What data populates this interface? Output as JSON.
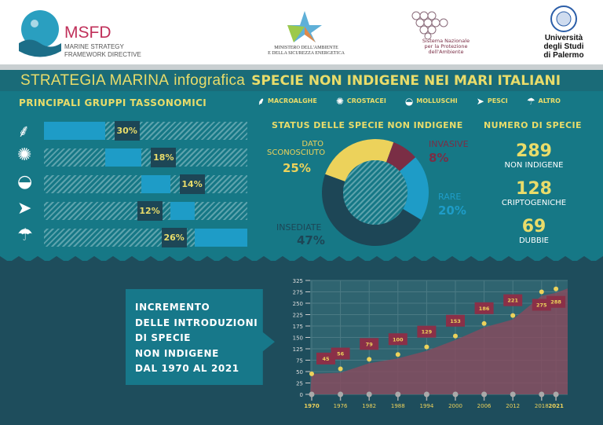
{
  "header": {
    "msfd_title": "MSFD",
    "msfd_sub1": "MARINE STRATEGY",
    "msfd_sub2": "FRAMEWORK DIRECTIVE",
    "ministero1": "MINISTERO DELL'AMBIENTE",
    "ministero2": "E DELLA SICUREZZA ENERGETICA",
    "snpa1": "Sistema Nazionale",
    "snpa2": "per la Protezione",
    "snpa3": "dell'Ambiente",
    "unipa1": "Università",
    "unipa2": "degli Studi",
    "unipa3": "di Palermo"
  },
  "title": {
    "part1": "STRATEGIA MARINA",
    "part2": "infografica",
    "part3": "SPECIE NON INDIGENE NEI MARI ITALIANI"
  },
  "colors": {
    "background": "#167886",
    "accent_yellow": "#e9dc6a",
    "bar_blue": "#1e9cc7",
    "invasive": "#7a2e45",
    "insediate": "#1d4656",
    "lower_bg": "#1e4d5c"
  },
  "legend": [
    {
      "label": "MACROALGHE",
      "icon": "seaweed-icon"
    },
    {
      "label": "CROSTACEI",
      "icon": "crab-icon"
    },
    {
      "label": "MOLLUSCHI",
      "icon": "shell-icon"
    },
    {
      "label": "PESCI",
      "icon": "fish-icon"
    },
    {
      "label": "ALTRO",
      "icon": "jellyfish-icon"
    }
  ],
  "chart_data": [
    {
      "type": "bar",
      "title": "PRINCIPALI GRUPPI TASSONOMICI",
      "stacked": true,
      "categories": [
        "MACROALGHE",
        "CROSTACEI",
        "MOLLUSCHI",
        "PESCI",
        "ALTRO"
      ],
      "values": [
        30,
        18,
        14,
        12,
        26
      ],
      "labels": [
        "30%",
        "18%",
        "14%",
        "12%",
        "26%"
      ]
    },
    {
      "type": "pie",
      "title": "STATUS DELLE SPECIE NON INDIGENE",
      "donut": true,
      "slices": [
        {
          "name": "DATO SCONOSCIUTO",
          "value": 25,
          "label": "25%",
          "color": "#ecd25b"
        },
        {
          "name": "INVASIVE",
          "value": 8,
          "label": "8%",
          "color": "#7a2e45"
        },
        {
          "name": "RARE",
          "value": 20,
          "label": "20%",
          "color": "#1e9cc7"
        },
        {
          "name": "INSEDIATE",
          "value": 47,
          "label": "47%",
          "color": "#1d4656"
        }
      ]
    },
    {
      "type": "area",
      "title": "INCREMENTO DELLE INTRODUZIONI DI SPECIE NON INDIGENE DAL 1970 AL 2021",
      "x": [
        1970,
        1976,
        1982,
        1988,
        1994,
        2000,
        2006,
        2012,
        2018,
        2021
      ],
      "values": [
        45,
        56,
        79,
        100,
        129,
        153,
        186,
        221,
        275,
        288
      ],
      "y_ticks": [
        0,
        25,
        50,
        75,
        125,
        150,
        175,
        225,
        250,
        275,
        325
      ],
      "ylim": [
        0,
        325
      ],
      "grid": true
    }
  ],
  "numero": {
    "title": "NUMERO DI SPECIE",
    "items": [
      {
        "value": "289",
        "label": "NON INDIGENE"
      },
      {
        "value": "128",
        "label": "CRIPTOGENICHE"
      },
      {
        "value": "69",
        "label": "DUBBIE"
      }
    ]
  },
  "increment": {
    "lines": [
      "INCREMENTO",
      "DELLE INTRODUZIONI",
      "DI SPECIE",
      "NON INDIGENE",
      "DAL 1970 AL 2021"
    ]
  }
}
